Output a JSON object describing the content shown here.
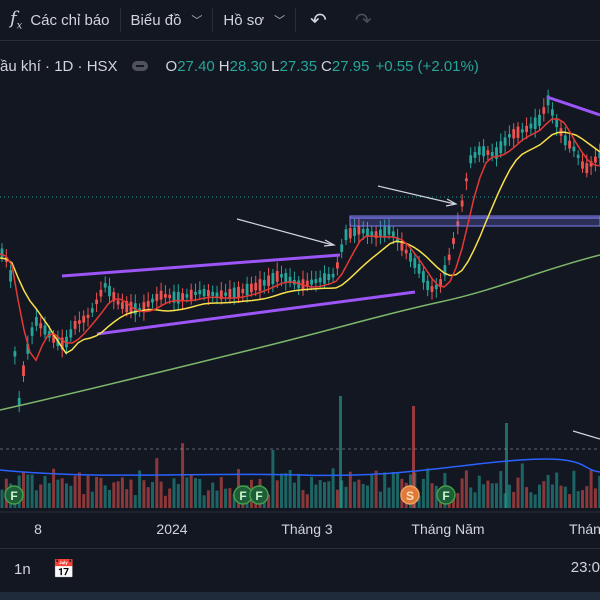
{
  "toolbar": {
    "indicators_label": "Các chỉ báo",
    "layout_label": "Biểu đồ",
    "profile_label": "Hồ sơ"
  },
  "legend": {
    "symbol": "ầu khí · 1D · HSX",
    "open_label": "O",
    "open": "27.40",
    "high_label": "H",
    "high": "28.30",
    "low_label": "L",
    "low": "27.35",
    "close_label": "C",
    "close": "27.95",
    "change": "+0.55 (+2.01%)"
  },
  "xaxis_ticks": [
    "8",
    "2024",
    "Tháng 3",
    "Tháng Năm",
    "Thán"
  ],
  "markers": [
    "F",
    "F",
    "F",
    "S",
    "F"
  ],
  "bottom": {
    "range": "1n",
    "time": "23:0"
  },
  "colors": {
    "up": "#26a69a",
    "down": "#ef5350",
    "ma_fast": "#e53935",
    "ma_mid": "#f7e04b",
    "ma_slow": "#7cb66a",
    "trend": "#9c55f7",
    "zone": "#7b7df4"
  }
}
